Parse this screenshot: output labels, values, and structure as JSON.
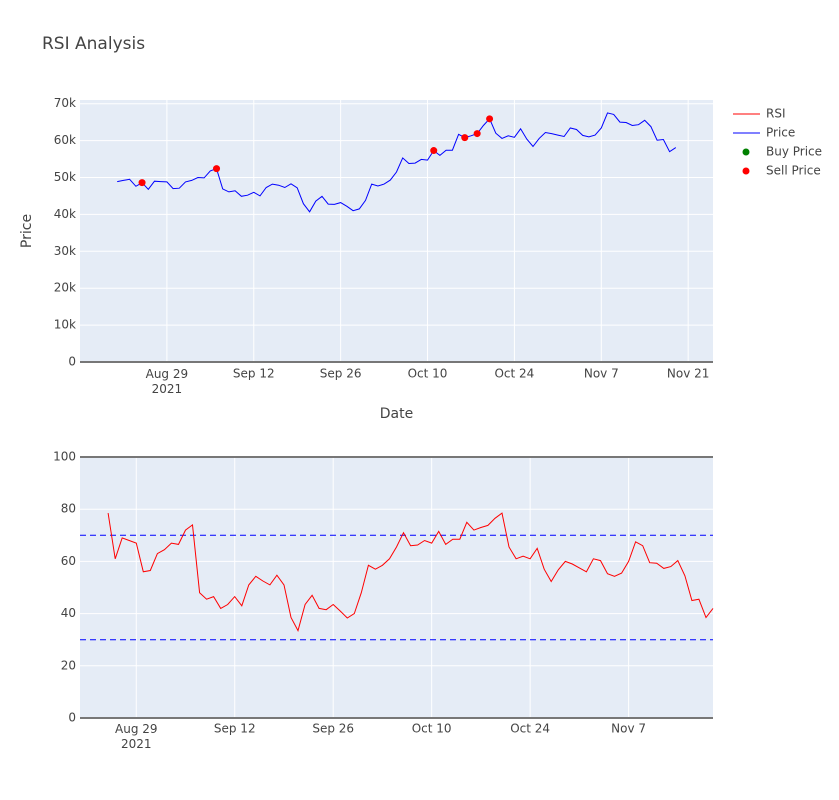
{
  "title": "RSI Analysis",
  "chart_data": [
    {
      "type": "line",
      "x_label": "Date",
      "y_label": "Price",
      "x": [
        "2021-08-21",
        "2021-08-22",
        "2021-08-23",
        "2021-08-24",
        "2021-08-25",
        "2021-08-26",
        "2021-08-27",
        "2021-08-28",
        "2021-08-29",
        "2021-08-30",
        "2021-08-31",
        "2021-09-01",
        "2021-09-02",
        "2021-09-03",
        "2021-09-04",
        "2021-09-05",
        "2021-09-06",
        "2021-09-07",
        "2021-09-08",
        "2021-09-09",
        "2021-09-10",
        "2021-09-11",
        "2021-09-12",
        "2021-09-13",
        "2021-09-14",
        "2021-09-15",
        "2021-09-16",
        "2021-09-17",
        "2021-09-18",
        "2021-09-19",
        "2021-09-20",
        "2021-09-21",
        "2021-09-22",
        "2021-09-23",
        "2021-09-24",
        "2021-09-25",
        "2021-09-26",
        "2021-09-27",
        "2021-09-28",
        "2021-09-29",
        "2021-09-30",
        "2021-10-01",
        "2021-10-02",
        "2021-10-03",
        "2021-10-04",
        "2021-10-05",
        "2021-10-06",
        "2021-10-07",
        "2021-10-08",
        "2021-10-09",
        "2021-10-10",
        "2021-10-11",
        "2021-10-12",
        "2021-10-13",
        "2021-10-14",
        "2021-10-15",
        "2021-10-16",
        "2021-10-17",
        "2021-10-18",
        "2021-10-19",
        "2021-10-20",
        "2021-10-21",
        "2021-10-22",
        "2021-10-23",
        "2021-10-24",
        "2021-10-25",
        "2021-10-26",
        "2021-10-27",
        "2021-10-28",
        "2021-10-29",
        "2021-10-30",
        "2021-10-31",
        "2021-11-01",
        "2021-11-02",
        "2021-11-03",
        "2021-11-04",
        "2021-11-05",
        "2021-11-06",
        "2021-11-07",
        "2021-11-08",
        "2021-11-09",
        "2021-11-10",
        "2021-11-11",
        "2021-11-12",
        "2021-11-13",
        "2021-11-14",
        "2021-11-15",
        "2021-11-16",
        "2021-11-17",
        "2021-11-18",
        "2021-11-19"
      ],
      "xlim": [
        "2021-08-15",
        "2021-11-25"
      ],
      "xticks": [
        {
          "value": "2021-08-29",
          "label": "Aug 29\n2021"
        },
        {
          "value": "2021-09-12",
          "label": "Sep 12"
        },
        {
          "value": "2021-09-26",
          "label": "Sep 26"
        },
        {
          "value": "2021-10-10",
          "label": "Oct 10"
        },
        {
          "value": "2021-10-24",
          "label": "Oct 24"
        },
        {
          "value": "2021-11-07",
          "label": "Nov 7"
        },
        {
          "value": "2021-11-21",
          "label": "Nov 21"
        }
      ],
      "ylim": [
        0,
        71000
      ],
      "yticks": [
        0,
        {
          "value": 10000,
          "label": "10k"
        },
        {
          "value": 20000,
          "label": "20k"
        },
        {
          "value": 30000,
          "label": "30k"
        },
        {
          "value": 40000,
          "label": "40k"
        },
        {
          "value": 50000,
          "label": "50k"
        },
        {
          "value": 60000,
          "label": "60k"
        },
        {
          "value": 70000,
          "label": "70k"
        }
      ],
      "grid": true,
      "series": [
        {
          "name": "Price",
          "color": "#0000ff",
          "values": [
            48900,
            49200,
            49500,
            47600,
            48600,
            46800,
            49000,
            48900,
            48800,
            47000,
            47100,
            48800,
            49200,
            50000,
            49900,
            51800,
            52400,
            46900,
            46100,
            46400,
            44900,
            45200,
            46000,
            45000,
            47300,
            48200,
            47900,
            47300,
            48300,
            47200,
            42900,
            40700,
            43600,
            44900,
            42800,
            42700,
            43200,
            42200,
            41000,
            41500,
            43800,
            48200,
            47700,
            48200,
            49300,
            51500,
            55300,
            53800,
            53900,
            54900,
            54700,
            57300,
            56000,
            57400,
            57400,
            61700,
            60800,
            61300,
            61900,
            64100,
            65900,
            62000,
            60600,
            61300,
            60900,
            63200,
            60400,
            58400,
            60600,
            62200,
            61900,
            61500,
            61100,
            63400,
            63000,
            61400,
            61000,
            61500,
            63400,
            67500,
            67100,
            65000,
            64900,
            64100,
            64300,
            65500,
            63800,
            60100,
            60300,
            57000,
            58100
          ]
        },
        {
          "name": "Buy Price",
          "type": "scatter",
          "color": "green",
          "x": [],
          "values": []
        },
        {
          "name": "Sell Price",
          "type": "scatter",
          "color": "red",
          "x": [
            "2021-08-25",
            "2021-09-06",
            "2021-10-11",
            "2021-10-16",
            "2021-10-18",
            "2021-10-20"
          ],
          "values": [
            48600,
            52400,
            57300,
            60800,
            61900,
            65900
          ]
        }
      ]
    },
    {
      "type": "line",
      "x": [
        "2021-08-25",
        "2021-08-26",
        "2021-08-27",
        "2021-08-28",
        "2021-08-29",
        "2021-08-30",
        "2021-08-31",
        "2021-09-01",
        "2021-09-02",
        "2021-09-03",
        "2021-09-04",
        "2021-09-05",
        "2021-09-06",
        "2021-09-07",
        "2021-09-08",
        "2021-09-09",
        "2021-09-10",
        "2021-09-11",
        "2021-09-12",
        "2021-09-13",
        "2021-09-14",
        "2021-09-15",
        "2021-09-16",
        "2021-09-17",
        "2021-09-18",
        "2021-09-19",
        "2021-09-20",
        "2021-09-21",
        "2021-09-22",
        "2021-09-23",
        "2021-09-24",
        "2021-09-25",
        "2021-09-26",
        "2021-09-27",
        "2021-09-28",
        "2021-09-29",
        "2021-09-30",
        "2021-10-01",
        "2021-10-02",
        "2021-10-03",
        "2021-10-04",
        "2021-10-05",
        "2021-10-06",
        "2021-10-07",
        "2021-10-08",
        "2021-10-09",
        "2021-10-10",
        "2021-10-11",
        "2021-10-12",
        "2021-10-13",
        "2021-10-14",
        "2021-10-15",
        "2021-10-16",
        "2021-10-17",
        "2021-10-18",
        "2021-10-19",
        "2021-10-20",
        "2021-10-21",
        "2021-10-22",
        "2021-10-23",
        "2021-10-24",
        "2021-10-25",
        "2021-10-26",
        "2021-10-27",
        "2021-10-28",
        "2021-10-29",
        "2021-10-30",
        "2021-10-31",
        "2021-11-01",
        "2021-11-02",
        "2021-11-03",
        "2021-11-04",
        "2021-11-05",
        "2021-11-06",
        "2021-11-07",
        "2021-11-08",
        "2021-11-09",
        "2021-11-10",
        "2021-11-11",
        "2021-11-12",
        "2021-11-13",
        "2021-11-14",
        "2021-11-15",
        "2021-11-16",
        "2021-11-17",
        "2021-11-18",
        "2021-11-19"
      ],
      "xlim": [
        "2021-08-21",
        "2021-11-19"
      ],
      "xticks": [
        {
          "value": "2021-08-29",
          "label": "Aug 29\n2021"
        },
        {
          "value": "2021-09-12",
          "label": "Sep 12"
        },
        {
          "value": "2021-09-26",
          "label": "Sep 26"
        },
        {
          "value": "2021-10-10",
          "label": "Oct 10"
        },
        {
          "value": "2021-10-24",
          "label": "Oct 24"
        },
        {
          "value": "2021-11-07",
          "label": "Nov 7"
        }
      ],
      "ylim": [
        0,
        100
      ],
      "yticks": [
        0,
        20,
        40,
        60,
        80,
        100
      ],
      "grid": true,
      "hlines": [
        70,
        30
      ],
      "hline_color": "blue",
      "series": [
        {
          "name": "RSI",
          "color": "red",
          "values": [
            78.5,
            61,
            69,
            68,
            67,
            56,
            56.5,
            63,
            64.5,
            67,
            66.5,
            72,
            74,
            48,
            45.5,
            46.5,
            42,
            43.5,
            46.5,
            43,
            51,
            54.3,
            52.5,
            51,
            54.7,
            51,
            38.5,
            33.5,
            43.5,
            47,
            42,
            41.5,
            43.5,
            41,
            38.3,
            40,
            48,
            58.5,
            57,
            58.5,
            61,
            65.5,
            71,
            66,
            66.3,
            68,
            67,
            71.5,
            66.5,
            68.5,
            68.5,
            75,
            72,
            73,
            73.8,
            76.5,
            78.5,
            65.5,
            61,
            62,
            61,
            65,
            57,
            52.3,
            56.8,
            60,
            59,
            57.5,
            56,
            61,
            60.3,
            55.3,
            54.3,
            55.5,
            60,
            67.5,
            66,
            59.5,
            59.3,
            57.3,
            58,
            60.3,
            54.5,
            45,
            45.5,
            38.5,
            42
          ]
        }
      ]
    }
  ]
}
